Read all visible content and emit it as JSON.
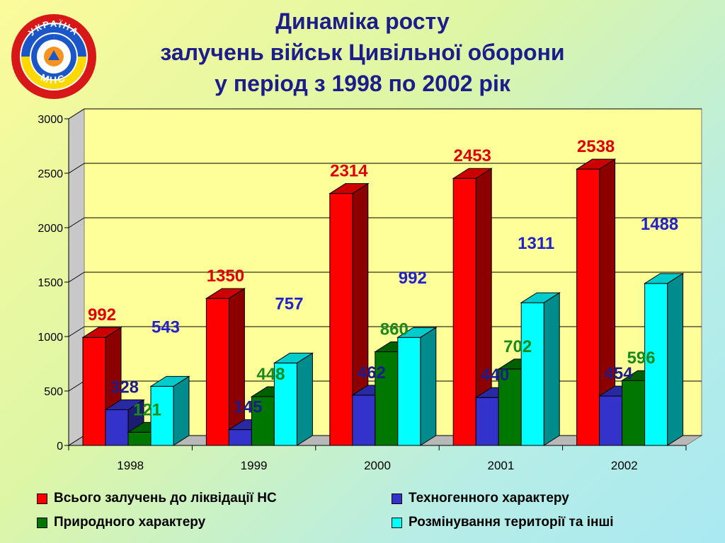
{
  "logo": {
    "top_text": "УКРАЇНА",
    "bottom_text": "МНС"
  },
  "title": {
    "line1": "Динаміка росту",
    "line2": "залучень військ Цивільної оборони",
    "line3": "у період з 1998 по 2002 рік"
  },
  "chart_data": {
    "type": "bar",
    "title": "Динаміка росту залучень військ Цивільної оборони у період з 1998 по 2002 рік",
    "categories": [
      "1998",
      "1999",
      "2000",
      "2001",
      "2002"
    ],
    "ylim": [
      0,
      3000
    ],
    "yticks": [
      0,
      500,
      1000,
      1500,
      2000,
      2500,
      3000
    ],
    "grid": true,
    "legend_position": "bottom",
    "series": [
      {
        "name": "Всього залучень до ліквідації НС",
        "values": [
          992,
          1350,
          2314,
          2453,
          2538
        ],
        "color": "#ff0000",
        "label_color": "#e00000"
      },
      {
        "name": "Техногенного характеру",
        "values": [
          328,
          145,
          462,
          440,
          454
        ],
        "color": "#3333cc",
        "label_color": "#1c1c8c"
      },
      {
        "name": "Природного характеру",
        "values": [
          121,
          448,
          860,
          702,
          596
        ],
        "color": "#007700",
        "label_color": "#1a8a1a"
      },
      {
        "name": "Розмінування території та інші",
        "values": [
          543,
          757,
          992,
          1311,
          1488
        ],
        "color": "#00ffff",
        "label_color": "#2222cc"
      }
    ]
  }
}
